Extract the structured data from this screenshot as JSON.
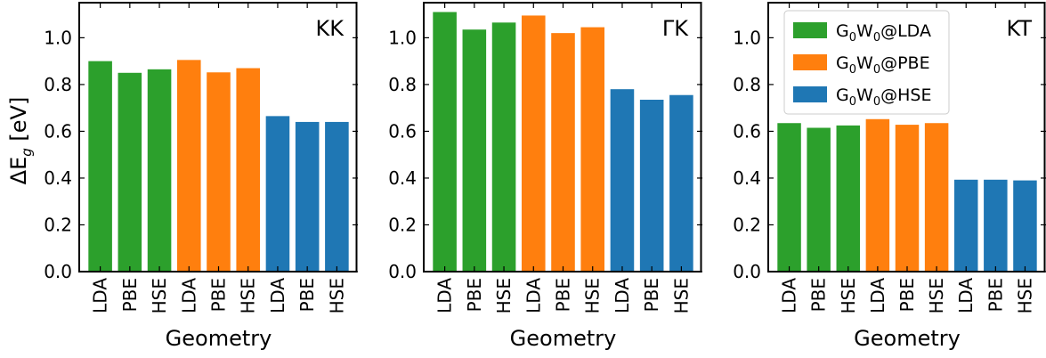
{
  "figure": {
    "ylabel": "ΔE_g [eV]",
    "xlabel": "Geometry",
    "yticks": [
      "0.0",
      "0.2",
      "0.4",
      "0.6",
      "0.8",
      "1.0"
    ],
    "colors": {
      "G0W0@LDA": "#2ca02c",
      "G0W0@PBE": "#ff7f0e",
      "G0W0@HSE": "#1f77b4"
    }
  },
  "chart_data": [
    {
      "type": "bar",
      "panel_label": "KK",
      "categories": [
        "LDA",
        "PBE",
        "HSE",
        "LDA",
        "PBE",
        "HSE",
        "LDA",
        "PBE",
        "HSE"
      ],
      "bar_series": [
        "G0W0@LDA",
        "G0W0@LDA",
        "G0W0@LDA",
        "G0W0@PBE",
        "G0W0@PBE",
        "G0W0@PBE",
        "G0W0@HSE",
        "G0W0@HSE",
        "G0W0@HSE"
      ],
      "values": [
        0.9,
        0.85,
        0.865,
        0.905,
        0.852,
        0.87,
        0.665,
        0.64,
        0.64
      ],
      "ylim": [
        0,
        1.15
      ],
      "xlabel": "Geometry",
      "ylabel": "ΔE_g [eV]"
    },
    {
      "type": "bar",
      "panel_label": "ΓK",
      "categories": [
        "LDA",
        "PBE",
        "HSE",
        "LDA",
        "PBE",
        "HSE",
        "LDA",
        "PBE",
        "HSE"
      ],
      "bar_series": [
        "G0W0@LDA",
        "G0W0@LDA",
        "G0W0@LDA",
        "G0W0@PBE",
        "G0W0@PBE",
        "G0W0@PBE",
        "G0W0@HSE",
        "G0W0@HSE",
        "G0W0@HSE"
      ],
      "values": [
        1.11,
        1.035,
        1.065,
        1.095,
        1.02,
        1.045,
        0.78,
        0.735,
        0.755
      ],
      "ylim": [
        0,
        1.15
      ],
      "xlabel": "Geometry"
    },
    {
      "type": "bar",
      "panel_label": "KT",
      "categories": [
        "LDA",
        "PBE",
        "HSE",
        "LDA",
        "PBE",
        "HSE",
        "LDA",
        "PBE",
        "HSE"
      ],
      "bar_series": [
        "G0W0@LDA",
        "G0W0@LDA",
        "G0W0@LDA",
        "G0W0@PBE",
        "G0W0@PBE",
        "G0W0@PBE",
        "G0W0@HSE",
        "G0W0@HSE",
        "G0W0@HSE"
      ],
      "values": [
        0.635,
        0.615,
        0.625,
        0.652,
        0.628,
        0.635,
        0.393,
        0.393,
        0.39
      ],
      "ylim": [
        0,
        1.15
      ],
      "xlabel": "Geometry",
      "legend": {
        "position": "upper-left",
        "entries": [
          {
            "base": "G",
            "sub1": "0",
            "mid": "W",
            "sub2": "0",
            "tail": "@LDA",
            "color": "#2ca02c"
          },
          {
            "base": "G",
            "sub1": "0",
            "mid": "W",
            "sub2": "0",
            "tail": "@PBE",
            "color": "#ff7f0e"
          },
          {
            "base": "G",
            "sub1": "0",
            "mid": "W",
            "sub2": "0",
            "tail": "@HSE",
            "color": "#1f77b4"
          }
        ]
      }
    }
  ]
}
